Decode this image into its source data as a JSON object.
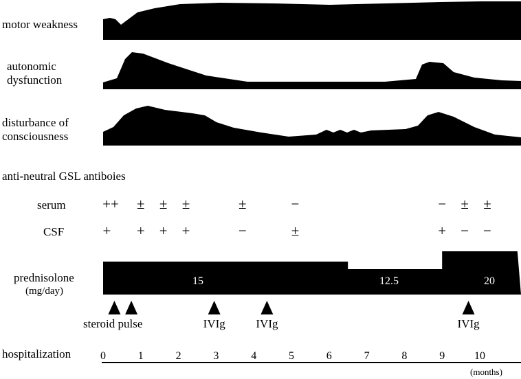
{
  "symptoms": [
    {
      "label_lines": [
        "motor weakness"
      ]
    },
    {
      "label_lines": [
        "autonomic",
        "dysfunction"
      ]
    },
    {
      "label_lines": [
        "disturbance of",
        "consciousness"
      ]
    }
  ],
  "antibody_title": "anti-neutral GSL antiboies",
  "serum": {
    "label": "serum",
    "results": [
      {
        "month": 0.2,
        "value": "++"
      },
      {
        "month": 1.0,
        "value": "±"
      },
      {
        "month": 1.6,
        "value": "±"
      },
      {
        "month": 2.2,
        "value": "±"
      },
      {
        "month": 3.7,
        "value": "±"
      },
      {
        "month": 5.1,
        "value": "−"
      },
      {
        "month": 9.0,
        "value": "−"
      },
      {
        "month": 9.6,
        "value": "±"
      },
      {
        "month": 10.2,
        "value": "±"
      }
    ]
  },
  "csf": {
    "label": "CSF",
    "results": [
      {
        "month": 0.1,
        "value": "+"
      },
      {
        "month": 1.0,
        "value": "+"
      },
      {
        "month": 1.6,
        "value": "+"
      },
      {
        "month": 2.2,
        "value": "+"
      },
      {
        "month": 3.7,
        "value": "−"
      },
      {
        "month": 5.1,
        "value": "±"
      },
      {
        "month": 9.0,
        "value": "+"
      },
      {
        "month": 9.6,
        "value": "−"
      },
      {
        "month": 10.2,
        "value": "−"
      }
    ]
  },
  "prednisolone": {
    "label": "prednisolone",
    "unit": "(mg/day)",
    "doses": [
      {
        "start": 0,
        "end": 6.5,
        "value": "15"
      },
      {
        "start": 6.5,
        "end": 9.0,
        "value": "12.5"
      },
      {
        "start": 9.0,
        "end": 11.0,
        "value": "20"
      }
    ]
  },
  "treatments": [
    {
      "months": [
        0.3,
        0.75
      ],
      "label": "steroid pulse"
    },
    {
      "months": [
        2.95
      ],
      "label": "IVIg"
    },
    {
      "months": [
        4.35
      ],
      "label": "IVIg"
    },
    {
      "months": [
        9.7
      ],
      "label": "IVIg"
    }
  ],
  "hospitalization": {
    "label": "hospitalization",
    "ticks": [
      "0",
      "1",
      "2",
      "3",
      "4",
      "5",
      "6",
      "7",
      "8",
      "9",
      "10"
    ],
    "unit": "(months)"
  }
}
